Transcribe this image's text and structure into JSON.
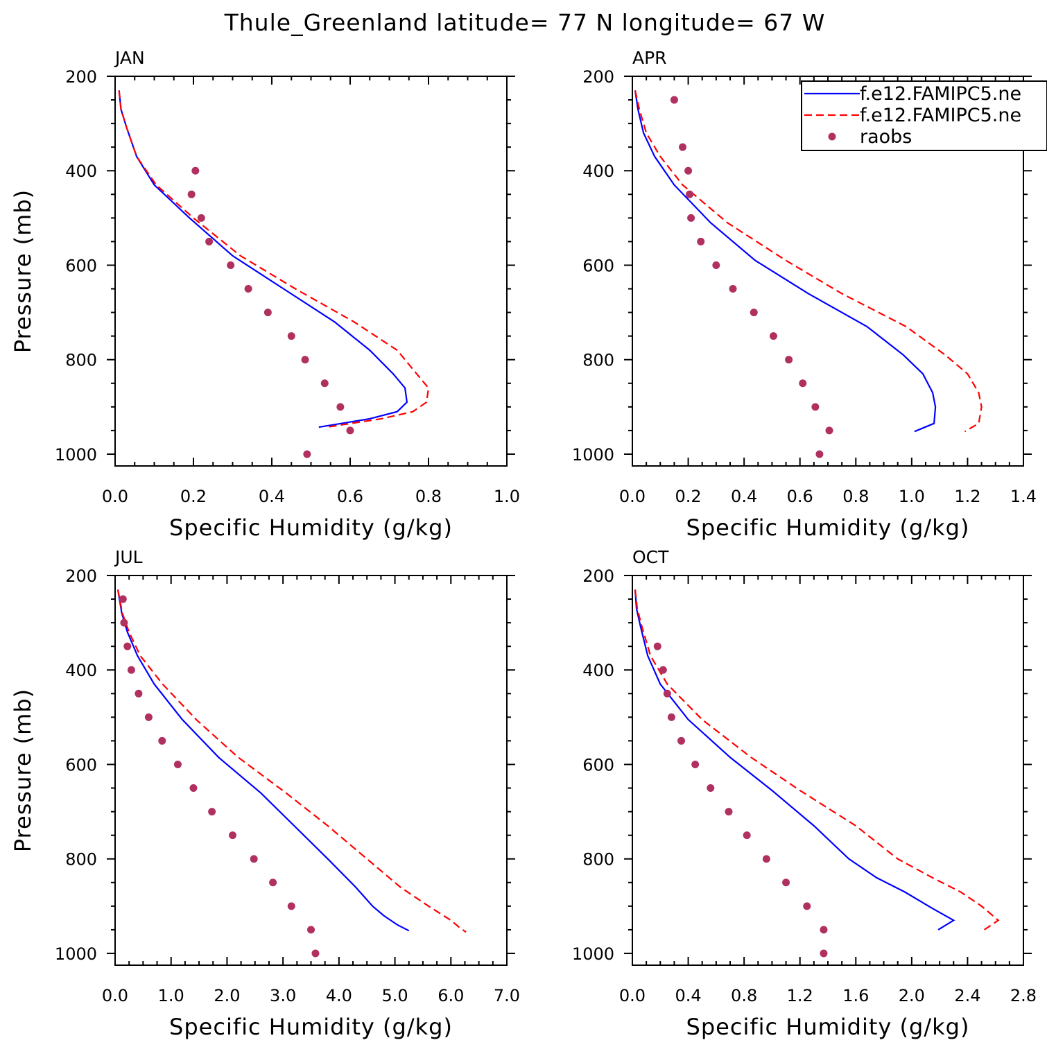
{
  "title": "Thule_Greenland  latitude= 77 N longitude= 67 W",
  "colors": {
    "model1": "#0000ff",
    "model2": "#ff0000",
    "raobs": "#b03060"
  },
  "legend": {
    "placement": "top-right of APR panel",
    "entries": [
      {
        "label": "f.e12.FAMIPC5.ne",
        "style": "solid",
        "color": "#0000ff"
      },
      {
        "label": "f.e12.FAMIPC5.ne",
        "style": "dashed",
        "color": "#ff0000"
      },
      {
        "label": "raobs",
        "style": "dot",
        "color": "#b03060"
      }
    ]
  },
  "chart_data": [
    {
      "type": "line",
      "title": "JAN",
      "xlabel": "Specific Humidity (g/kg)",
      "ylabel": "Pressure (mb)",
      "xlim": [
        0,
        1.0
      ],
      "ylim": [
        200,
        1025
      ],
      "y_inverted": true,
      "xticks": [
        0.0,
        0.2,
        0.4,
        0.6,
        0.8,
        1.0
      ],
      "xtick_labels": [
        "0.0",
        "0.2",
        "0.4",
        "0.6",
        "0.8",
        "1.0"
      ],
      "yticks": [
        200,
        400,
        600,
        800,
        1000
      ],
      "ytick_labels": [
        "200",
        "400",
        "600",
        "800",
        "1000"
      ],
      "series": [
        {
          "name": "f.e12.FAMIPC5.ne",
          "style": "solid",
          "x": [
            0.01,
            0.015,
            0.03,
            0.055,
            0.1,
            0.19,
            0.3,
            0.43,
            0.56,
            0.65,
            0.71,
            0.74,
            0.745,
            0.72,
            0.65,
            0.52
          ],
          "y": [
            230,
            270,
            310,
            370,
            430,
            500,
            580,
            650,
            720,
            780,
            830,
            860,
            890,
            910,
            925,
            943
          ]
        },
        {
          "name": "f.e12.FAMIPC5.ne",
          "style": "dashed",
          "x": [
            0.01,
            0.015,
            0.03,
            0.055,
            0.105,
            0.2,
            0.32,
            0.46,
            0.61,
            0.72,
            0.77,
            0.8,
            0.795,
            0.76,
            0.68,
            0.54
          ],
          "y": [
            230,
            270,
            310,
            370,
            430,
            500,
            580,
            650,
            720,
            780,
            830,
            860,
            890,
            910,
            925,
            943
          ]
        },
        {
          "name": "raobs",
          "style": "dot",
          "x": [
            0.205,
            0.195,
            0.22,
            0.24,
            0.295,
            0.34,
            0.39,
            0.45,
            0.485,
            0.535,
            0.575,
            0.6,
            0.49
          ],
          "y": [
            400,
            450,
            500,
            550,
            600,
            650,
            700,
            750,
            800,
            850,
            900,
            950,
            1000
          ]
        }
      ]
    },
    {
      "type": "line",
      "title": "APR",
      "xlabel": "Specific Humidity (g/kg)",
      "ylabel": "",
      "xlim": [
        0,
        1.4
      ],
      "ylim": [
        200,
        1025
      ],
      "y_inverted": true,
      "xticks": [
        0.0,
        0.2,
        0.4,
        0.6,
        0.8,
        1.0,
        1.2,
        1.4
      ],
      "xtick_labels": [
        "0.0",
        "0.2",
        "0.4",
        "0.6",
        "0.8",
        "1.0",
        "1.2",
        "1.4"
      ],
      "yticks": [
        200,
        400,
        600,
        800,
        1000
      ],
      "ytick_labels": [
        "200",
        "400",
        "600",
        "800",
        "1000"
      ],
      "series": [
        {
          "name": "f.e12.FAMIPC5.ne",
          "style": "solid",
          "x": [
            0.01,
            0.02,
            0.04,
            0.08,
            0.15,
            0.28,
            0.44,
            0.63,
            0.84,
            0.97,
            1.04,
            1.075,
            1.085,
            1.08,
            1.01
          ],
          "y": [
            230,
            270,
            320,
            370,
            430,
            510,
            590,
            660,
            730,
            790,
            830,
            870,
            900,
            935,
            952
          ]
        },
        {
          "name": "f.e12.FAMIPC5.ne",
          "style": "dashed",
          "x": [
            0.01,
            0.025,
            0.05,
            0.1,
            0.18,
            0.34,
            0.55,
            0.75,
            0.98,
            1.12,
            1.2,
            1.24,
            1.25,
            1.24,
            1.19
          ],
          "y": [
            230,
            270,
            320,
            370,
            430,
            510,
            590,
            660,
            730,
            790,
            830,
            870,
            900,
            935,
            952
          ]
        },
        {
          "name": "raobs",
          "style": "dot",
          "x": [
            0.15,
            0.18,
            0.2,
            0.205,
            0.21,
            0.245,
            0.3,
            0.36,
            0.435,
            0.505,
            0.56,
            0.61,
            0.655,
            0.705,
            0.67
          ],
          "y": [
            250,
            350,
            400,
            450,
            500,
            550,
            600,
            650,
            700,
            750,
            800,
            850,
            900,
            950,
            1000
          ]
        }
      ]
    },
    {
      "type": "line",
      "title": "JUL",
      "xlabel": "Specific Humidity (g/kg)",
      "ylabel": "Pressure (mb)",
      "xlim": [
        0,
        7.0
      ],
      "ylim": [
        200,
        1025
      ],
      "y_inverted": true,
      "xticks": [
        0.0,
        1.0,
        2.0,
        3.0,
        4.0,
        5.0,
        6.0,
        7.0
      ],
      "xtick_labels": [
        "0.0",
        "1.0",
        "2.0",
        "3.0",
        "4.0",
        "5.0",
        "6.0",
        "7.0"
      ],
      "yticks": [
        200,
        400,
        600,
        800,
        1000
      ],
      "ytick_labels": [
        "200",
        "400",
        "600",
        "800",
        "1000"
      ],
      "series": [
        {
          "name": "f.e12.FAMIPC5.ne",
          "style": "solid",
          "x": [
            0.05,
            0.12,
            0.22,
            0.4,
            0.7,
            1.2,
            1.85,
            2.6,
            3.2,
            3.8,
            4.3,
            4.6,
            4.8,
            5.05,
            5.25
          ],
          "y": [
            230,
            280,
            320,
            370,
            430,
            505,
            585,
            660,
            730,
            800,
            860,
            900,
            920,
            940,
            952
          ]
        },
        {
          "name": "f.e12.FAMIPC5.ne",
          "style": "dashed",
          "x": [
            0.05,
            0.13,
            0.25,
            0.45,
            0.85,
            1.45,
            2.2,
            3.05,
            3.8,
            4.5,
            5.1,
            5.6,
            6.0,
            6.15,
            6.27
          ],
          "y": [
            230,
            280,
            320,
            370,
            430,
            505,
            585,
            660,
            730,
            800,
            860,
            900,
            930,
            945,
            955
          ]
        },
        {
          "name": "raobs",
          "style": "dot",
          "x": [
            0.14,
            0.16,
            0.22,
            0.29,
            0.42,
            0.6,
            0.84,
            1.12,
            1.4,
            1.73,
            2.1,
            2.48,
            2.82,
            3.15,
            3.5,
            3.58
          ],
          "y": [
            250,
            300,
            350,
            400,
            450,
            500,
            550,
            600,
            650,
            700,
            750,
            800,
            850,
            900,
            950,
            1000
          ]
        }
      ]
    },
    {
      "type": "line",
      "title": "OCT",
      "xlabel": "Specific Humidity (g/kg)",
      "ylabel": "",
      "xlim": [
        0,
        2.8
      ],
      "ylim": [
        200,
        1025
      ],
      "y_inverted": true,
      "xticks": [
        0.0,
        0.4,
        0.8,
        1.2,
        1.6,
        2.0,
        2.4,
        2.8
      ],
      "xtick_labels": [
        "0.0",
        "0.4",
        "0.8",
        "1.2",
        "1.6",
        "2.0",
        "2.4",
        "2.8"
      ],
      "yticks": [
        200,
        400,
        600,
        800,
        1000
      ],
      "ytick_labels": [
        "200",
        "400",
        "600",
        "800",
        "1000"
      ],
      "series": [
        {
          "name": "f.e12.FAMIPC5.ne",
          "style": "solid",
          "x": [
            0.02,
            0.03,
            0.06,
            0.11,
            0.2,
            0.4,
            0.7,
            1.0,
            1.3,
            1.55,
            1.75,
            1.95,
            2.15,
            2.3,
            2.19
          ],
          "y": [
            230,
            270,
            310,
            370,
            430,
            505,
            585,
            655,
            730,
            800,
            840,
            870,
            905,
            930,
            950
          ]
        },
        {
          "name": "f.e12.FAMIPC5.ne",
          "style": "dashed",
          "x": [
            0.02,
            0.035,
            0.07,
            0.13,
            0.25,
            0.5,
            0.85,
            1.2,
            1.6,
            1.9,
            2.15,
            2.35,
            2.5,
            2.62,
            2.52
          ],
          "y": [
            230,
            270,
            310,
            370,
            430,
            505,
            585,
            655,
            730,
            800,
            840,
            870,
            900,
            930,
            950
          ]
        },
        {
          "name": "raobs",
          "style": "dot",
          "x": [
            0.18,
            0.22,
            0.25,
            0.28,
            0.35,
            0.45,
            0.56,
            0.69,
            0.82,
            0.96,
            1.1,
            1.25,
            1.37,
            1.37
          ],
          "y": [
            350,
            400,
            450,
            500,
            550,
            600,
            650,
            700,
            750,
            800,
            850,
            900,
            950,
            1000
          ]
        }
      ]
    }
  ]
}
